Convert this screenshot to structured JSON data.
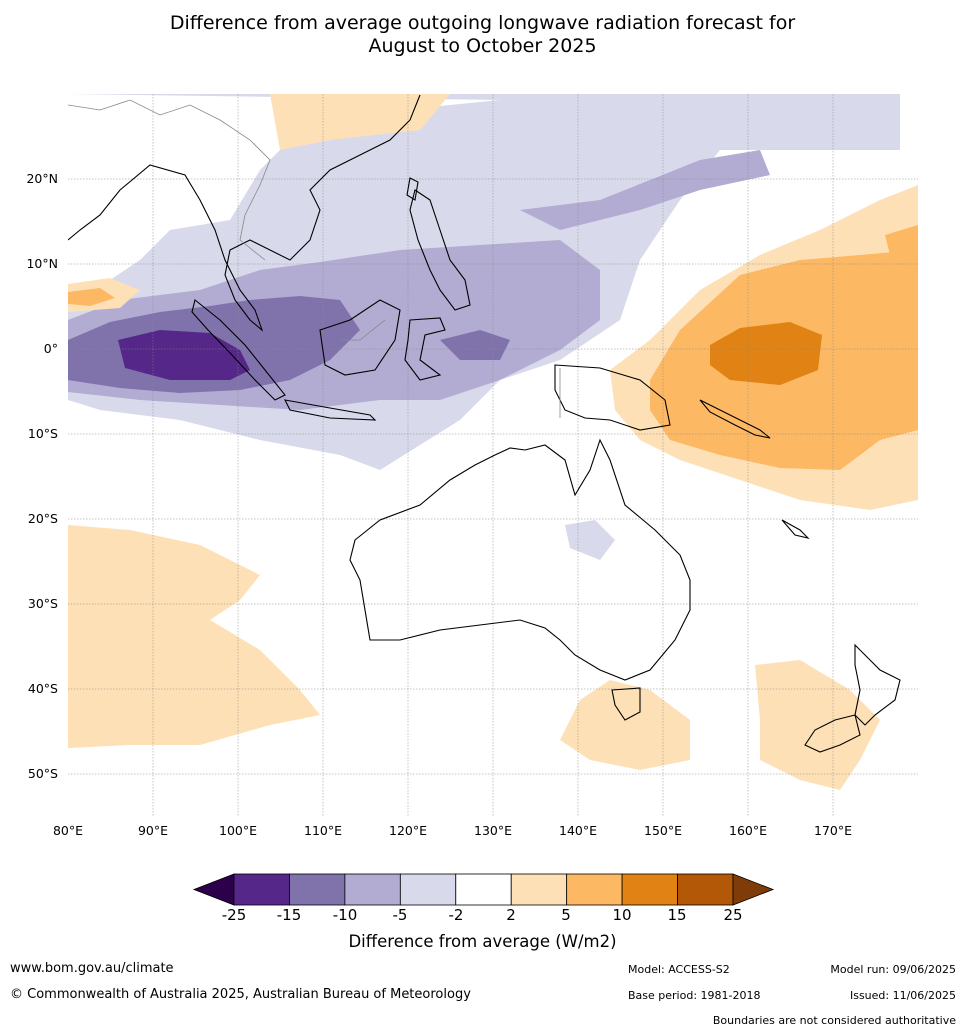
{
  "title": {
    "line1": "Difference from average outgoing longwave radiation forecast for",
    "line2": "August to October 2025"
  },
  "map": {
    "lat_labels": [
      "20°N",
      "10°N",
      "0°",
      "10°S",
      "20°S",
      "30°S",
      "40°S",
      "50°S"
    ],
    "lon_labels": [
      "80°E",
      "90°E",
      "100°E",
      "110°E",
      "120°E",
      "130°E",
      "140°E",
      "150°E",
      "160°E",
      "170°E"
    ],
    "gridlines": true,
    "extent": {
      "lon": [
        80,
        180
      ],
      "lat": [
        -55,
        30
      ]
    }
  },
  "legend": {
    "label": "Difference from average (W/m2)",
    "ticks": [
      "-25",
      "-15",
      "-10",
      "-5",
      "-2",
      "2",
      "5",
      "10",
      "15",
      "25"
    ],
    "bins": [
      {
        "range": "< -25",
        "color": "#2d004b"
      },
      {
        "range": "-25 to -15",
        "color": "#542788"
      },
      {
        "range": "-15 to -10",
        "color": "#8073ac"
      },
      {
        "range": "-10 to -5",
        "color": "#b2abd2"
      },
      {
        "range": "-5 to -2",
        "color": "#d8daeb"
      },
      {
        "range": "-2 to 2",
        "color": "#ffffff"
      },
      {
        "range": "2 to 5",
        "color": "#fee0b6"
      },
      {
        "range": "5 to 10",
        "color": "#fdb863"
      },
      {
        "range": "10 to 15",
        "color": "#e08214"
      },
      {
        "range": "15 to 25",
        "color": "#b35806"
      },
      {
        "range": "> 25",
        "color": "#7f3b08"
      }
    ]
  },
  "footer": {
    "website": "www.bom.gov.au/climate",
    "copyright": "© Commonwealth of Australia 2025, Australian Bureau of Meteorology",
    "model": "Model: ACCESS-S2",
    "base_period": "Base period: 1981-2018",
    "model_run": "Model run: 09/06/2025",
    "issued": "Issued: 11/06/2025",
    "disclaimer": "Boundaries are not considered authoritative"
  }
}
